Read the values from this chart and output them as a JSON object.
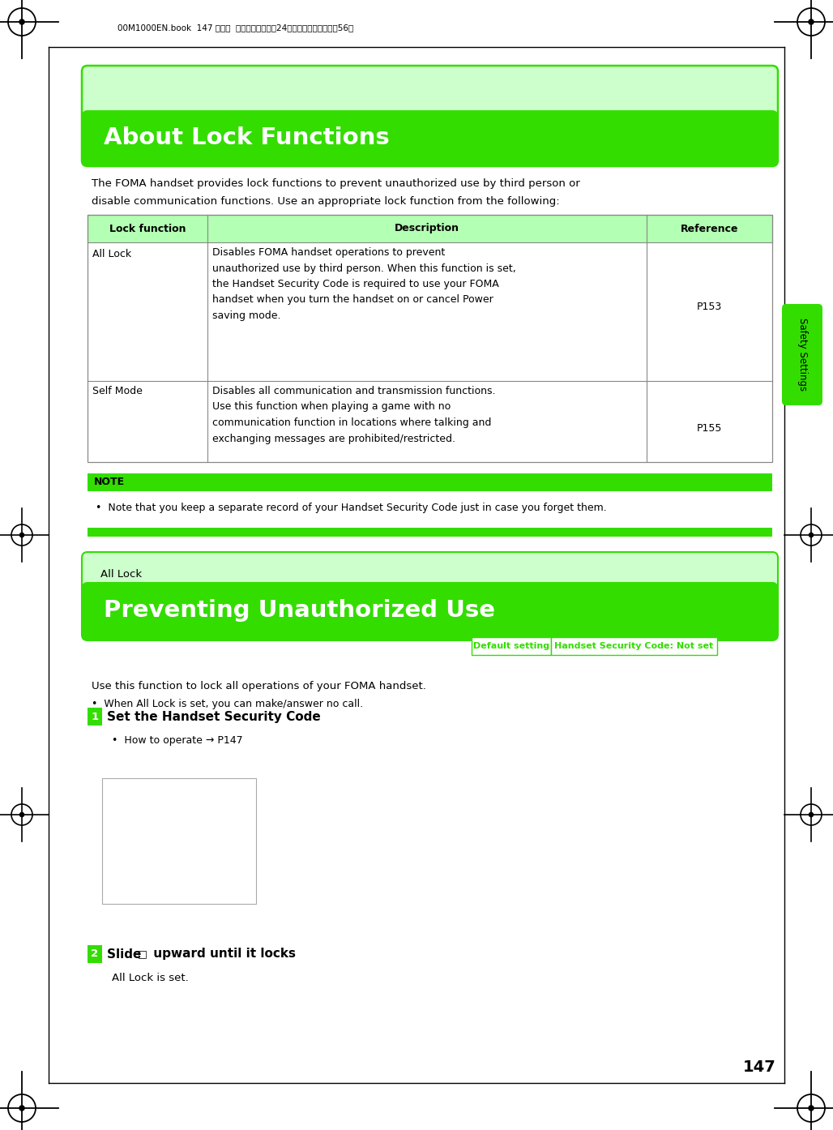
{
  "page_bg": "#ffffff",
  "green_bright": "#33dd00",
  "green_light": "#ccffcc",
  "header_text": "00M1000EN.book  147 ページ  ２００４年１１月24日　水曜日　午前７時56分",
  "page_number": "147",
  "sidebar_label": "Safety Settings",
  "about_title": "About Lock Functions",
  "about_intro_1": "The FOMA handset provides lock functions to prevent unauthorized use by third person or",
  "about_intro_2": "disable communication functions. Use an appropriate lock function from the following:",
  "table_header": [
    "Lock function",
    "Description",
    "Reference"
  ],
  "table_row1_col0": "All Lock",
  "table_row1_col1": "Disables FOMA handset operations to prevent\nunauthorized use by third person. When this function is set,\nthe Handset Security Code is required to use your FOMA\nhandset when you turn the handset on or cancel Power\nsaving mode.",
  "table_row1_col2": "P153",
  "table_row2_col0": "Self Mode",
  "table_row2_col1": "Disables all communication and transmission functions.\nUse this function when playing a game with no\ncommunication function in locations where talking and\nexchanging messages are prohibited/restricted.",
  "table_row2_col2": "P155",
  "note_label": "NOTE",
  "note_bullet": "Note that you keep a separate record of your Handset Security Code just in case you forget them.",
  "section_label": "All Lock",
  "section_title": "Preventing Unauthorized Use",
  "default_label": "Default setting",
  "default_value": "Handset Security Code: Not set",
  "intro1": "Use this function to lock all operations of your FOMA handset.",
  "intro2": "When All Lock is set, you can make/answer no call.",
  "step1_num": "1",
  "step1_title": "Set the Handset Security Code",
  "step1_sub": "How to operate → P147",
  "step2_num": "2",
  "step2_part1": "Slide ",
  "step2_part2": " upward until it locks",
  "step2_icon": "□",
  "step2_sub": "All Lock is set."
}
